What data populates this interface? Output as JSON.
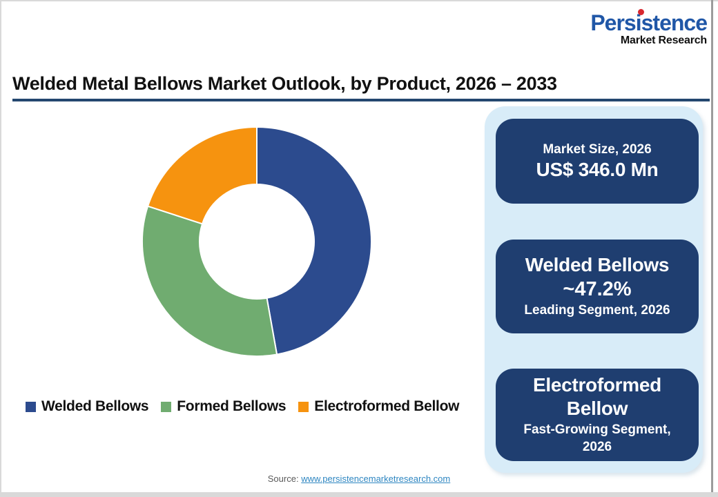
{
  "logo": {
    "brand": "Persistence",
    "subtitle": "Market Research",
    "brand_color": "#2057A7",
    "dot_color": "#D8282F"
  },
  "title": {
    "text": "Welded Metal Bellows Market Outlook, by Product, 2026 – 2033",
    "underline_color": "#24476F"
  },
  "chart_data": {
    "type": "pie",
    "subtype": "donut",
    "title": "Welded Metal Bellows Market Outlook, by Product, 2026 – 2033",
    "categories": [
      "Welded Bellows",
      "Formed Bellows",
      "Electroformed Bellow"
    ],
    "values": [
      47.2,
      32.8,
      20.0
    ],
    "unit": "%",
    "colors": [
      "#2C4B8E",
      "#70AC70",
      "#F6930F"
    ],
    "start_angle_deg": 0,
    "direction": "clockwise",
    "inner_radius_ratio": 0.5,
    "legend_position": "bottom-left"
  },
  "legend": {
    "items": [
      {
        "label": "Welded Bellows",
        "color": "#2C4B8E"
      },
      {
        "label": "Formed Bellows",
        "color": "#70AC70"
      },
      {
        "label": "Electroformed Bellow",
        "color": "#F6930F"
      }
    ]
  },
  "panel": {
    "bg_color": "#D8ECF8",
    "card_bg_color": "#1F3E70"
  },
  "cards": [
    {
      "title": "Market Size, 2026",
      "value": "US$ 346.0 Mn"
    },
    {
      "title": "Welded Bellows",
      "value": "~47.2%",
      "caption": "Leading Segment, 2026"
    },
    {
      "title": "Electroformed Bellow",
      "caption": "Fast-Growing Segment, 2026"
    }
  ],
  "footer": {
    "label": "Source:",
    "link": "www.persistencemarketresearch.com",
    "link_color": "#2E86C1"
  }
}
